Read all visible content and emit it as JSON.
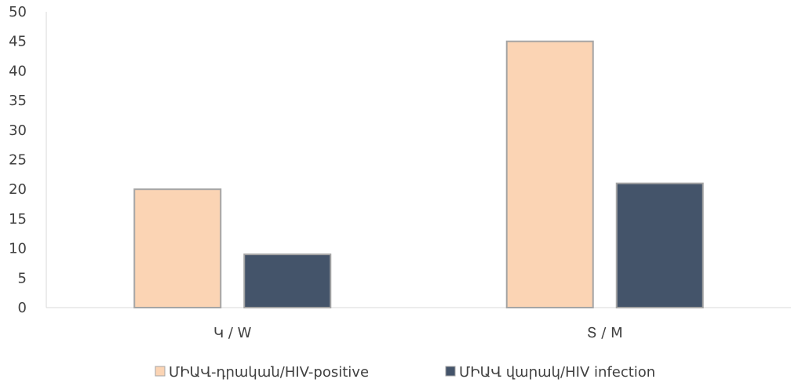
{
  "chart_data": {
    "type": "bar",
    "categories": [
      "Կ / W",
      "Տ / M"
    ],
    "series": [
      {
        "name": "ՄԻԱՎ-դրական/HIV-positive",
        "values": [
          20,
          45
        ],
        "color": "#FBD4B4",
        "stroke": "#A5A5A5"
      },
      {
        "name": "ՄԻԱՎ վարակ/HIV infection",
        "values": [
          9,
          21
        ],
        "color": "#44546A",
        "stroke": "#A5A5A5"
      }
    ],
    "yticks": [
      "0",
      "5",
      "10",
      "15",
      "20",
      "25",
      "30",
      "35",
      "40",
      "45",
      "50"
    ],
    "ylim": [
      0,
      50
    ],
    "legend_position": "bottom",
    "title": "",
    "xlabel": "",
    "ylabel": "",
    "grid": false
  }
}
